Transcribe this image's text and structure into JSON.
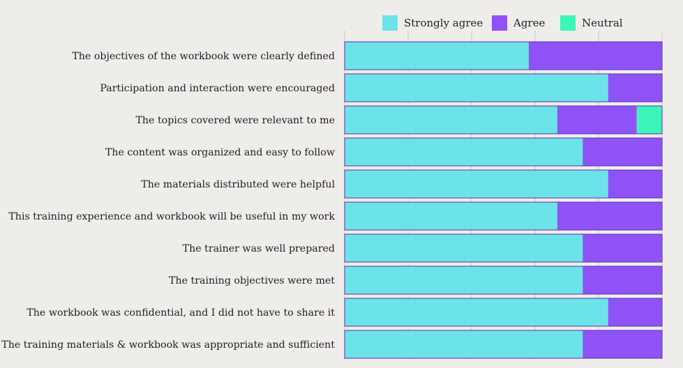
{
  "chart_data": {
    "type": "bar",
    "orientation": "horizontal",
    "stacked": true,
    "normalized": true,
    "categories": [
      "The objectives of the workbook were clearly defined",
      "Participation and interaction were encouraged",
      "The topics covered were relevant to me",
      "The content was organized and easy to follow",
      "The materials distributed were helpful",
      "This training experience and workbook will be useful in my work",
      "The trainer was well prepared",
      "The training objectives were met",
      "The workbook was confidential, and I did not have to share it",
      "The training materials & workbook was appropriate and sufficient"
    ],
    "series": [
      {
        "name": "Strongly agree",
        "color": "#6ce3e8",
        "values": [
          58,
          83,
          67,
          75,
          83,
          67,
          75,
          75,
          83,
          75
        ]
      },
      {
        "name": "Agree",
        "color": "#8f52f7",
        "values": [
          42,
          17,
          25,
          25,
          17,
          33,
          25,
          25,
          17,
          25
        ]
      },
      {
        "name": "Neutral",
        "color": "#3df5b8",
        "values": [
          0,
          0,
          8,
          0,
          0,
          0,
          0,
          0,
          0,
          0
        ]
      }
    ],
    "xlim": [
      0,
      100
    ],
    "grid": true,
    "legend_position": "top-right",
    "gridline_color": "#c9c9c9",
    "bar_border_color": "#5b2fb0"
  }
}
